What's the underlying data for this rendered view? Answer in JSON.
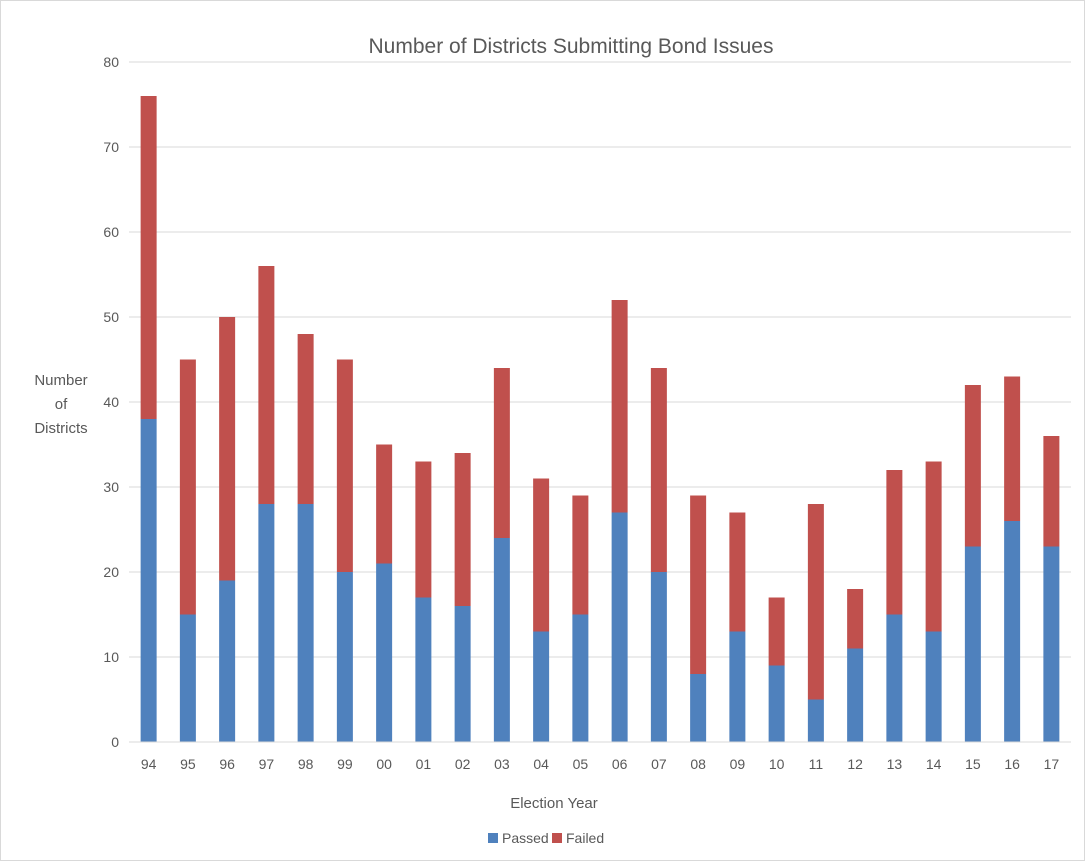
{
  "chart_data": {
    "type": "bar",
    "stacked": true,
    "title": "Number of Districts Submitting Bond Issues",
    "xlabel": "Election Year",
    "ylabel": [
      "Number",
      "of",
      "Districts"
    ],
    "categories": [
      "94",
      "95",
      "96",
      "97",
      "98",
      "99",
      "00",
      "01",
      "02",
      "03",
      "04",
      "05",
      "06",
      "07",
      "08",
      "09",
      "10",
      "11",
      "12",
      "13",
      "14",
      "15",
      "16",
      "17"
    ],
    "series": [
      {
        "name": "Passed",
        "color": "#4f81bd",
        "values": [
          38,
          15,
          19,
          28,
          28,
          20,
          21,
          17,
          16,
          24,
          13,
          15,
          27,
          20,
          8,
          13,
          9,
          5,
          11,
          15,
          13,
          23,
          26,
          23
        ]
      },
      {
        "name": "Failed",
        "color": "#c0504d",
        "values": [
          38,
          30,
          31,
          28,
          20,
          25,
          14,
          16,
          18,
          20,
          18,
          14,
          25,
          24,
          21,
          14,
          8,
          23,
          7,
          17,
          20,
          19,
          17,
          13
        ]
      }
    ],
    "ylim": [
      0,
      80
    ],
    "yticks": [
      0,
      10,
      20,
      30,
      40,
      50,
      60,
      70,
      80
    ],
    "grid": true,
    "legend": "bottom"
  }
}
